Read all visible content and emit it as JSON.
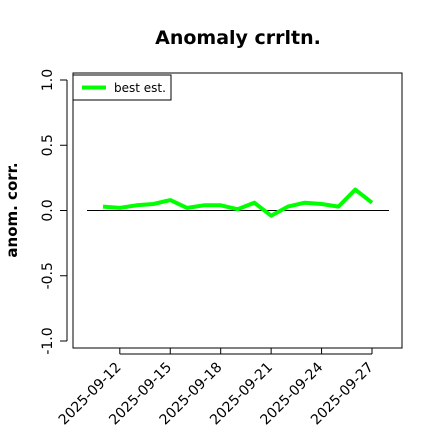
{
  "chart_data": {
    "type": "line",
    "title": "Anomaly crrltn.",
    "xlabel": "",
    "ylabel": "anom. corr.",
    "ylim": [
      -1.0,
      1.0
    ],
    "yticks": [
      "-1.0",
      "-0.5",
      "0.0",
      "0.5",
      "1.0"
    ],
    "x": [
      "2025-09-11",
      "2025-09-12",
      "2025-09-13",
      "2025-09-14",
      "2025-09-15",
      "2025-09-16",
      "2025-09-17",
      "2025-09-18",
      "2025-09-19",
      "2025-09-20",
      "2025-09-21",
      "2025-09-22",
      "2025-09-23",
      "2025-09-24",
      "2025-09-25",
      "2025-09-26",
      "2025-09-27"
    ],
    "xticks": [
      "2025-09-12",
      "2025-09-15",
      "2025-09-18",
      "2025-09-21",
      "2025-09-24",
      "2025-09-27"
    ],
    "reference_line": 0.0,
    "grid": false,
    "legend_position": "top-left",
    "series": [
      {
        "name": "best est.",
        "color": "#00ff00",
        "values": [
          0.03,
          0.02,
          0.04,
          0.05,
          0.08,
          0.02,
          0.04,
          0.04,
          0.01,
          0.06,
          -0.04,
          0.03,
          0.06,
          0.05,
          0.03,
          0.16,
          0.06
        ]
      }
    ]
  }
}
